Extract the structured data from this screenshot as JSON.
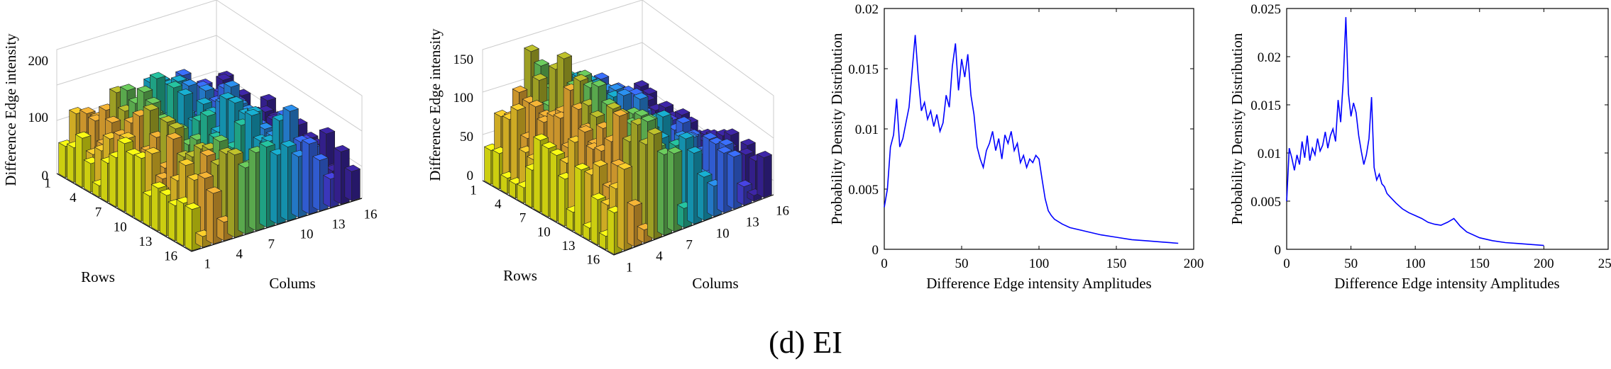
{
  "caption": "(d) EI",
  "colors": {
    "line": "#0000ff",
    "axis": "#000000",
    "grid3d": "#cccccc",
    "barPalette": [
      "#3e26a8",
      "#4743e3",
      "#3a6ffd",
      "#2b91f0",
      "#18b0d2",
      "#26c4a0",
      "#6ccd5e",
      "#bfc22c",
      "#f6b536",
      "#fbd02c",
      "#f9fb14"
    ]
  },
  "chart_data": [
    {
      "id": "bar3d_left",
      "type": "bar3d",
      "zlabel": "Difference Edge intensity",
      "xlabel": "Colums",
      "ylabel": "Rows",
      "zlim": [
        0,
        200
      ],
      "zticks": [
        "0",
        "100",
        "200"
      ],
      "row_ticks": [
        "1",
        "4",
        "7",
        "10",
        "13",
        "16"
      ],
      "col_ticks": [
        "1",
        "4",
        "7",
        "10",
        "13",
        "16"
      ],
      "column_mean_heights": [
        60,
        62,
        58,
        65,
        95,
        120,
        118,
        110,
        105,
        100,
        95,
        92,
        85,
        88,
        82,
        80
      ]
    },
    {
      "id": "bar3d_right",
      "type": "bar3d",
      "zlabel": "Difference Edge intensity",
      "xlabel": "Colums",
      "ylabel": "Rows",
      "zlim": [
        0,
        150
      ],
      "zticks": [
        "0",
        "50",
        "100",
        "150"
      ],
      "row_ticks": [
        "1",
        "4",
        "7",
        "10",
        "13",
        "16"
      ],
      "col_ticks": [
        "1",
        "4",
        "7",
        "10",
        "13",
        "16"
      ],
      "column_mean_heights": [
        40,
        45,
        42,
        55,
        60,
        70,
        75,
        72,
        80,
        95,
        110,
        120,
        100,
        85,
        75,
        70
      ]
    },
    {
      "id": "pdf_left",
      "type": "line",
      "xlabel": "Difference Edge intensity Amplitudes",
      "ylabel": "Probability Density Distribution",
      "xlim": [
        0,
        200
      ],
      "ylim": [
        0,
        0.02
      ],
      "xticks": [
        "0",
        "50",
        "100",
        "150",
        "200"
      ],
      "yticks": [
        "0",
        "0.005",
        "0.01",
        "0.015",
        "0.02"
      ],
      "x": [
        0,
        2,
        4,
        6,
        8,
        10,
        12,
        14,
        16,
        18,
        20,
        22,
        24,
        26,
        28,
        30,
        32,
        34,
        36,
        38,
        40,
        42,
        44,
        46,
        48,
        50,
        52,
        54,
        56,
        58,
        60,
        62,
        64,
        66,
        68,
        70,
        72,
        74,
        76,
        78,
        80,
        82,
        84,
        86,
        88,
        90,
        92,
        94,
        96,
        98,
        100,
        102,
        104,
        106,
        108,
        110,
        115,
        120,
        130,
        140,
        150,
        160,
        170,
        180,
        190
      ],
      "y": [
        0.0035,
        0.005,
        0.0085,
        0.0095,
        0.0125,
        0.0085,
        0.0092,
        0.0105,
        0.0118,
        0.0148,
        0.0178,
        0.0142,
        0.0115,
        0.0122,
        0.0108,
        0.0115,
        0.0102,
        0.0112,
        0.0098,
        0.0105,
        0.0128,
        0.0118,
        0.0152,
        0.0171,
        0.0132,
        0.0158,
        0.0143,
        0.0162,
        0.0128,
        0.0112,
        0.0085,
        0.0075,
        0.0068,
        0.0082,
        0.0088,
        0.0098,
        0.0082,
        0.0092,
        0.0075,
        0.0095,
        0.0088,
        0.0098,
        0.0082,
        0.0088,
        0.0072,
        0.0078,
        0.0068,
        0.0075,
        0.0072,
        0.0078,
        0.0075,
        0.0058,
        0.0042,
        0.0032,
        0.0028,
        0.0025,
        0.0021,
        0.0018,
        0.0015,
        0.0012,
        0.001,
        0.0008,
        0.0007,
        0.0006,
        0.0005
      ]
    },
    {
      "id": "pdf_right",
      "type": "line",
      "xlabel": "Difference Edge intensity Amplitudes",
      "ylabel": "Probability Density Distribution",
      "xlim": [
        0,
        250
      ],
      "ylim": [
        0,
        0.025
      ],
      "xticks": [
        "0",
        "50",
        "100",
        "150",
        "200",
        "250"
      ],
      "yticks": [
        "0",
        "0.005",
        "0.01",
        "0.015",
        "0.02",
        "0.025"
      ],
      "x": [
        0,
        2,
        4,
        6,
        8,
        10,
        12,
        14,
        16,
        18,
        20,
        22,
        24,
        26,
        28,
        30,
        32,
        34,
        36,
        38,
        40,
        42,
        44,
        46,
        48,
        50,
        52,
        54,
        56,
        58,
        60,
        62,
        64,
        66,
        68,
        70,
        72,
        74,
        76,
        78,
        80,
        85,
        90,
        95,
        100,
        105,
        110,
        115,
        120,
        125,
        130,
        135,
        140,
        150,
        160,
        170,
        180,
        190,
        200
      ],
      "y": [
        0.005,
        0.0105,
        0.0095,
        0.0082,
        0.0098,
        0.0088,
        0.0112,
        0.0095,
        0.0118,
        0.0092,
        0.0105,
        0.0098,
        0.0115,
        0.0102,
        0.0108,
        0.0122,
        0.0105,
        0.0118,
        0.0125,
        0.0112,
        0.0155,
        0.0132,
        0.0175,
        0.0241,
        0.0162,
        0.0138,
        0.0152,
        0.0142,
        0.0118,
        0.0102,
        0.0088,
        0.0098,
        0.0115,
        0.0158,
        0.0085,
        0.0072,
        0.0078,
        0.0068,
        0.0065,
        0.0058,
        0.0055,
        0.0048,
        0.0042,
        0.0038,
        0.0035,
        0.0032,
        0.0028,
        0.0026,
        0.0025,
        0.0028,
        0.0032,
        0.0024,
        0.0018,
        0.0012,
        0.0009,
        0.0007,
        0.0006,
        0.0005,
        0.0004
      ]
    }
  ]
}
